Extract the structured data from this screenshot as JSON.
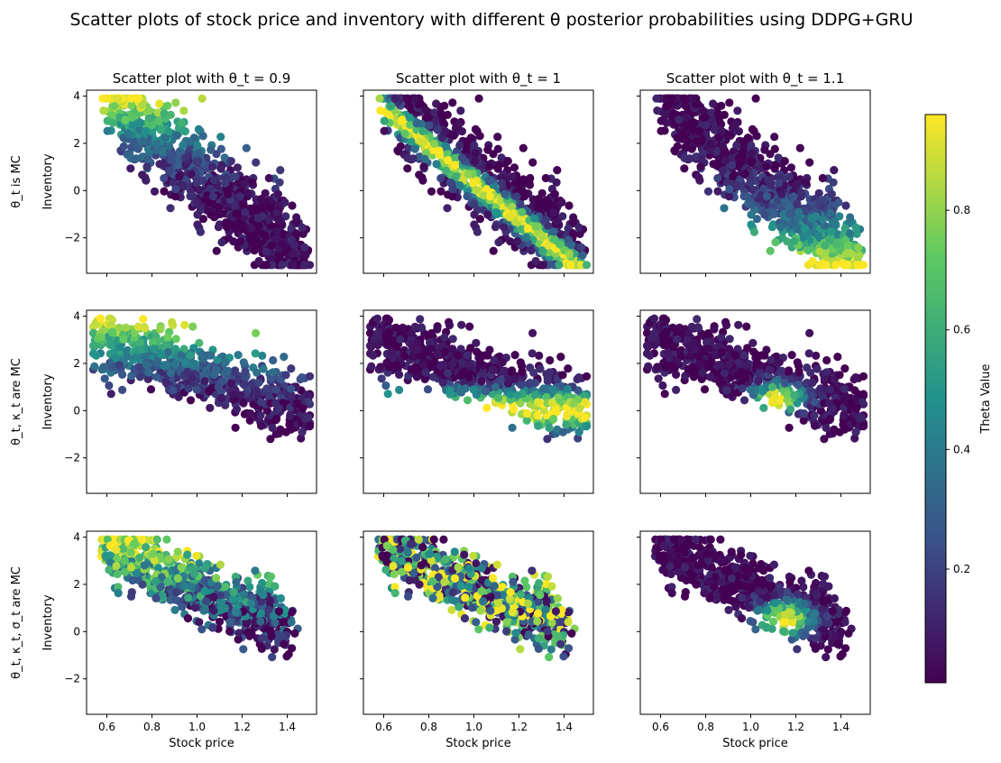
{
  "title": "Scatter plots of stock price and inventory with different θ posterior probabilities using DDPG+GRU",
  "chart_data": {
    "type": "scatter",
    "title": "Scatter plots of stock price and inventory with different θ posterior probabilities using DDPG+GRU",
    "xlabel": "Stock price",
    "ylabel": "Inventory",
    "xlim": [
      0.51,
      1.53
    ],
    "ylim": [
      -3.5,
      4.25
    ],
    "x_ticks": [
      0.6,
      0.8,
      1.0,
      1.2,
      1.4
    ],
    "x_tick_labels": [
      "0.6",
      "0.8",
      "1.0",
      "1.2",
      "1.4"
    ],
    "y_ticks": [
      -2,
      0,
      2,
      4
    ],
    "y_tick_labels": [
      "−2",
      "0",
      "2",
      "4"
    ],
    "grid": false,
    "column_titles": [
      "Scatter plot with θ_t = 0.9",
      "Scatter plot with θ_t = 1",
      "Scatter plot with θ_t = 1.1"
    ],
    "row_labels": [
      "θ_t is MC",
      "θ_t, κ_t are MC",
      "θ_t, κ_t, σ_t are MC"
    ],
    "colorbar": {
      "label": "Theta Value",
      "range": [
        0.01,
        0.96
      ],
      "ticks": [
        0.2,
        0.4,
        0.6,
        0.8
      ],
      "tick_labels": [
        "0.2",
        "0.4",
        "0.6",
        "0.8"
      ],
      "colormap": "viridis",
      "colors": [
        "#440154",
        "#3b528b",
        "#21918c",
        "#5ec962",
        "#fde725"
      ]
    },
    "rows": [
      {
        "label": "θ_t is MC",
        "cloud": {
          "x_range": [
            0.62,
            1.48
          ],
          "y_at_x_min": 3.7,
          "y_at_x_max": -3.0,
          "width": 2.8,
          "y_min": -3.15,
          "y_max": 3.9
        },
        "theta_trend": {
          "0.9": "yellow at high inventory",
          "1": "yellow in center band",
          "1.1": "yellow at low inventory"
        }
      },
      {
        "label": "θ_t, κ_t are MC",
        "cloud": {
          "x_range": [
            0.55,
            1.5
          ],
          "y_at_x_min": 3.0,
          "y_at_x_max": 0.0,
          "width": 2.0,
          "y_min": -1.5,
          "y_max": 3.9
        },
        "theta_trend": {
          "0.9": "yellow at high inventory",
          "1": "yellow at lower-center",
          "1.1": "yellow around x≈1.1, y≈0.5"
        }
      },
      {
        "label": "θ_t, κ_t, σ_t are MC",
        "cloud": {
          "x_range": [
            0.6,
            1.42
          ],
          "y_at_x_min": 3.4,
          "y_at_x_max": 0.2,
          "width": 1.9,
          "y_min": -1.5,
          "y_max": 3.9
        },
        "theta_trend": {
          "0.9": "yellow at high inventory, mixed",
          "1": "mixed colors",
          "1.1": "yellow around x≈1.15, y≈0.5"
        }
      }
    ]
  }
}
